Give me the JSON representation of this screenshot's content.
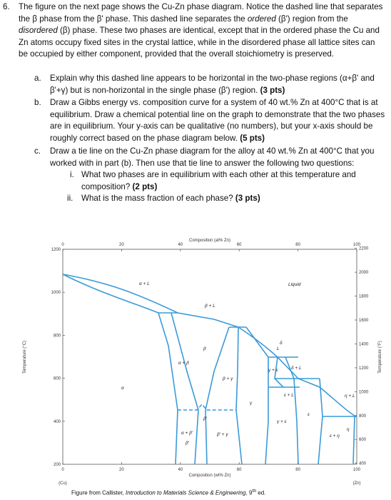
{
  "question": {
    "number": "6.",
    "intro": [
      "The figure on the next page shows the Cu-Zn phase diagram.  Notice the dashed line that separates the β phase from the β' phase.  This dashed line separates the ",
      "ordered",
      " (β') region from the ",
      "disordered",
      " (β) phase.  These two phases are identical, except that in the ordered phase the Cu and Zn atoms occupy fixed sites in the crystal lattice, while in the disordered phase all lattice sites can be occupied by either component, provided that the overall stoichiometry is preserved."
    ]
  },
  "parts": [
    {
      "label": "a.",
      "text": "Explain why this dashed line appears to be horizontal in the two-phase regions (α+β' and β'+γ) but is non-horizontal in the single phase (β') region.",
      "points": "(3 pts)"
    },
    {
      "label": "b.",
      "text": "Draw a Gibbs energy vs. composition curve for a system of 40 wt.% Zn at 400°C that is at equilibrium. Draw a chemical potential line on the graph to demonstrate that the two phases are in equilibrium. Your y-axis can be qualitative (no numbers), but your x-axis should be roughly correct based on the phase diagram below.",
      "points": "(5 pts)"
    },
    {
      "label": "c.",
      "text": "Draw a tie line on the Cu-Zn phase diagram for the alloy at 40 wt.% Zn at 400°C that you worked with in part (b). Then use that tie line to answer the following two questions:",
      "subparts": [
        {
          "label": "i.",
          "text": "What two phases are in equilibrium with each other at this temperature and composition?",
          "points": "(2 pts)"
        },
        {
          "label": "ii.",
          "text": "What is the mass fraction of each phase?",
          "points": "(3 pts)"
        }
      ]
    }
  ],
  "figure": {
    "top_axis_title": "Composition (at% Zn)",
    "top_ticks": [
      0,
      20,
      40,
      60,
      80,
      100
    ],
    "bottom_axis_title": "Composition (wt% Zn)",
    "bottom_ticks": [
      0,
      20,
      40,
      60,
      80,
      100
    ],
    "left_end": "(Cu)",
    "right_end": "(Zn)",
    "left_axis_title": "Temperature (°C)",
    "left_ticks": [
      200,
      400,
      600,
      800,
      1000,
      1200
    ],
    "right_axis_title": "Temperature (°F)",
    "right_ticks": [
      400,
      600,
      800,
      1000,
      1200,
      1400,
      1600,
      1800,
      2000,
      2200
    ],
    "regions": [
      "α + L",
      "β + L",
      "Liquid",
      "L",
      "α",
      "α + β",
      "β",
      "β + γ",
      "γ",
      "γ + ε",
      "δ + L",
      "δ",
      "ε + L",
      "ε",
      "η + L",
      "α + β'",
      "β'",
      "β' + γ",
      "γ + ε",
      "ε + η",
      "η",
      "β'"
    ],
    "caption": [
      "Figure from Callister, ",
      "Introduction to Materials Science & Engineering",
      ", 9",
      "th",
      " ed."
    ]
  }
}
